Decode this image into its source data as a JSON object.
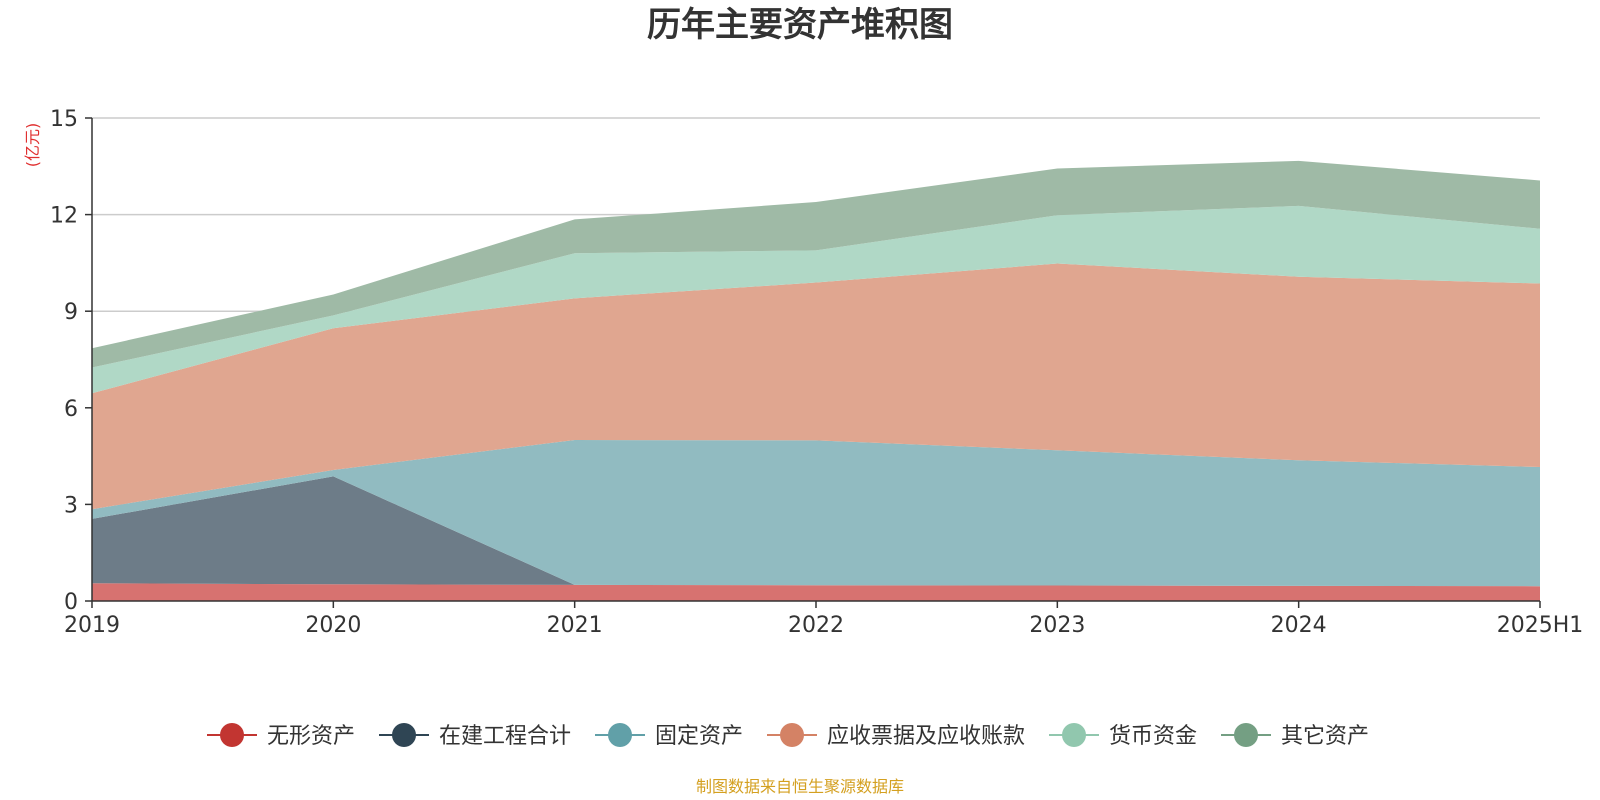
{
  "colors": {
    "area": [
      "#d77270",
      "#6d7c88",
      "#91bbc1",
      "#e0a690",
      "#b0d8c6",
      "#9fbaa6"
    ],
    "marker": [
      "#c23531",
      "#2f4554",
      "#61a0a8",
      "#d48265",
      "#91c7ae",
      "#749f83"
    ],
    "source": "#d4a020",
    "unit": "#e03030"
  },
  "chart_data": {
    "type": "area",
    "stacked": true,
    "title": "历年主要资产堆积图",
    "y_unit": "(亿元)",
    "source": "制图数据来自恒生聚源数据库",
    "x": [
      "2019",
      "2020",
      "2021",
      "2022",
      "2023",
      "2024",
      "2025H1"
    ],
    "y_ticks": [
      "0",
      "3",
      "6",
      "9",
      "12",
      "15"
    ],
    "ylim": [
      0,
      15
    ],
    "grid": true,
    "legend_position": "bottom",
    "series": [
      {
        "name": "无形资产",
        "values": [
          0.55,
          0.52,
          0.5,
          0.49,
          0.48,
          0.47,
          0.46
        ]
      },
      {
        "name": "在建工程合计",
        "values": [
          2.0,
          3.35,
          0.0,
          0.0,
          0.0,
          0.0,
          0.0
        ]
      },
      {
        "name": "固定资产",
        "values": [
          0.3,
          0.2,
          4.5,
          4.5,
          4.2,
          3.9,
          3.7
        ]
      },
      {
        "name": "应收票据及应收账款",
        "values": [
          3.6,
          4.4,
          4.4,
          4.9,
          5.8,
          5.7,
          5.7
        ]
      },
      {
        "name": "货币资金",
        "values": [
          0.8,
          0.4,
          1.4,
          1.0,
          1.5,
          2.2,
          1.7
        ]
      },
      {
        "name": "其它资产",
        "values": [
          0.6,
          0.65,
          1.05,
          1.5,
          1.45,
          1.4,
          1.5
        ]
      }
    ]
  }
}
